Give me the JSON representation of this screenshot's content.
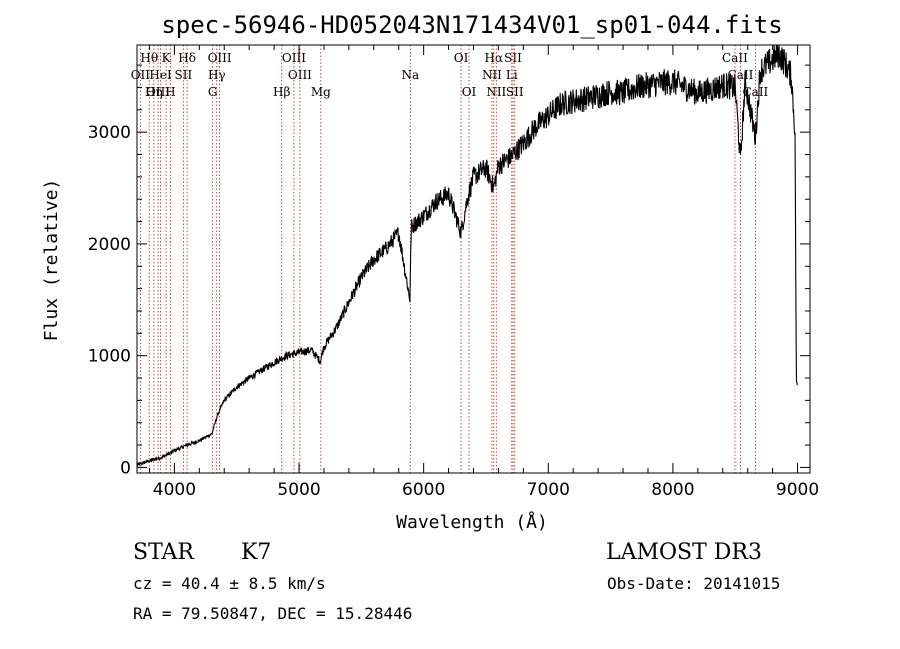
{
  "chart_data": {
    "type": "line",
    "title": "spec-56946-HD052043N171434V01_sp01-044.fits",
    "xlabel": "Wavelength (Å)",
    "ylabel": "Flux (relative)",
    "xlim": [
      3700,
      9100
    ],
    "ylim": [
      -50,
      3780
    ],
    "xticks": [
      4000,
      5000,
      6000,
      7000,
      8000,
      9000
    ],
    "yticks": [
      0,
      1000,
      2000,
      3000
    ],
    "series": [
      {
        "name": "spectrum",
        "points": [
          [
            3700,
            20
          ],
          [
            3800,
            60
          ],
          [
            3900,
            90
          ],
          [
            4000,
            150
          ],
          [
            4100,
            200
          ],
          [
            4200,
            240
          ],
          [
            4300,
            300
          ],
          [
            4350,
            480
          ],
          [
            4400,
            600
          ],
          [
            4500,
            720
          ],
          [
            4600,
            800
          ],
          [
            4700,
            870
          ],
          [
            4800,
            940
          ],
          [
            4900,
            1000
          ],
          [
            5000,
            1030
          ],
          [
            5100,
            1050
          ],
          [
            5170,
            950
          ],
          [
            5200,
            1080
          ],
          [
            5300,
            1250
          ],
          [
            5400,
            1480
          ],
          [
            5500,
            1700
          ],
          [
            5600,
            1860
          ],
          [
            5700,
            1960
          ],
          [
            5800,
            2100
          ],
          [
            5890,
            1500
          ],
          [
            5900,
            2150
          ],
          [
            6000,
            2250
          ],
          [
            6100,
            2380
          ],
          [
            6200,
            2450
          ],
          [
            6300,
            2100
          ],
          [
            6350,
            2400
          ],
          [
            6400,
            2600
          ],
          [
            6500,
            2680
          ],
          [
            6563,
            2500
          ],
          [
            6600,
            2700
          ],
          [
            6700,
            2780
          ],
          [
            6800,
            2900
          ],
          [
            6900,
            3050
          ],
          [
            7000,
            3150
          ],
          [
            7100,
            3250
          ],
          [
            7200,
            3280
          ],
          [
            7300,
            3300
          ],
          [
            7400,
            3330
          ],
          [
            7500,
            3360
          ],
          [
            7600,
            3350
          ],
          [
            7700,
            3400
          ],
          [
            7800,
            3420
          ],
          [
            7900,
            3440
          ],
          [
            8000,
            3450
          ],
          [
            8100,
            3400
          ],
          [
            8200,
            3350
          ],
          [
            8300,
            3380
          ],
          [
            8400,
            3420
          ],
          [
            8500,
            3400
          ],
          [
            8542,
            2750
          ],
          [
            8580,
            3450
          ],
          [
            8662,
            2950
          ],
          [
            8700,
            3550
          ],
          [
            8800,
            3650
          ],
          [
            8850,
            3700
          ],
          [
            8900,
            3620
          ],
          [
            8950,
            3500
          ],
          [
            8980,
            3000
          ],
          [
            8990,
            800
          ],
          [
            9000,
            700
          ]
        ]
      }
    ],
    "spectral_lines": [
      {
        "label": "Hθ",
        "wl": 3798,
        "row": 1
      },
      {
        "label": "K",
        "wl": 3934,
        "row": 1
      },
      {
        "label": "Hδ",
        "wl": 4102,
        "row": 1
      },
      {
        "label": "OIII",
        "wl": 4363,
        "row": 1
      },
      {
        "label": "OIII",
        "wl": 4959,
        "row": 1
      },
      {
        "label": "OI",
        "wl": 6300,
        "row": 1
      },
      {
        "label": "Hα",
        "wl": 6563,
        "row": 1
      },
      {
        "label": "SII",
        "wl": 6717,
        "row": 1
      },
      {
        "label": "CaII",
        "wl": 8498,
        "row": 1
      },
      {
        "label": "OII",
        "wl": 3727,
        "row": 2
      },
      {
        "label": "HeI",
        "wl": 3889,
        "row": 2
      },
      {
        "label": "SII",
        "wl": 4072,
        "row": 2
      },
      {
        "label": "Hγ",
        "wl": 4340,
        "row": 2
      },
      {
        "label": "OIII",
        "wl": 5007,
        "row": 2
      },
      {
        "label": "Na",
        "wl": 5893,
        "row": 2
      },
      {
        "label": "NII",
        "wl": 6548,
        "row": 2
      },
      {
        "label": "Li",
        "wl": 6707,
        "row": 2
      },
      {
        "label": "CaII",
        "wl": 8542,
        "row": 2
      },
      {
        "label": "OIII",
        "wl": 3869,
        "row": 3
      },
      {
        "label": "Hη",
        "wl": 3835,
        "row": 3
      },
      {
        "label": "H",
        "wl": 3968,
        "row": 3
      },
      {
        "label": "G",
        "wl": 4307,
        "row": 3
      },
      {
        "label": "Hβ",
        "wl": 4861,
        "row": 3
      },
      {
        "label": "Mg",
        "wl": 5175,
        "row": 3
      },
      {
        "label": "OI",
        "wl": 6364,
        "row": 3
      },
      {
        "label": "NII",
        "wl": 6583,
        "row": 3
      },
      {
        "label": "SII",
        "wl": 6731,
        "row": 3
      },
      {
        "label": "CaII",
        "wl": 8662,
        "row": 3
      }
    ]
  },
  "info": {
    "object_class": "STAR",
    "subclass": "K7",
    "survey": "LAMOST DR3",
    "cz": "cz = 40.4 ± 8.5 km/s",
    "obs_date": "Obs-Date: 20141015",
    "radec": "RA =  79.50847, DEC =  15.28446"
  }
}
